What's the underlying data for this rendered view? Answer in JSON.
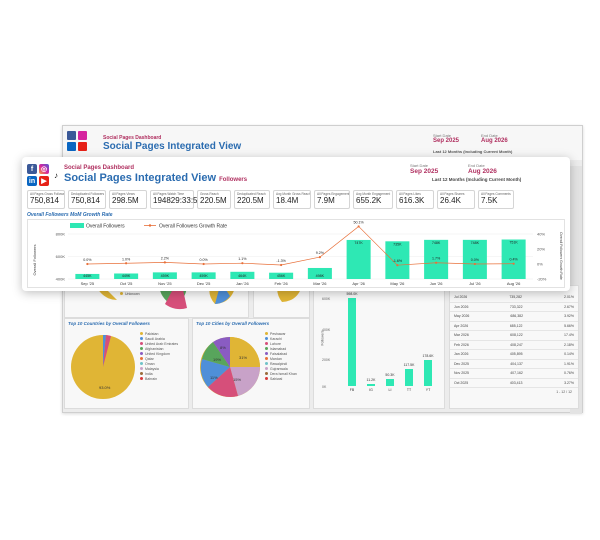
{
  "background": {
    "header": {
      "small_title": "Social Pages Dashboard",
      "big_title": "Social Pages Integrated View",
      "date_start_label": "Start Date",
      "date_start": "Sep 2025",
      "date_end_label": "End Date",
      "date_end": "Aug 2026",
      "range_text": "Last 12 Months (Including Current Month)"
    },
    "pie1_legend": [
      "Unknown"
    ],
    "countries_title": "Top 10 Countries by Overall Followers",
    "countries_legend": [
      "Pakistan",
      "Saudi Arabia",
      "United Arab Emirates",
      "Afghanistan",
      "United Kingdom",
      "Qatar",
      "Oman",
      "Malaysia",
      "India",
      "Bahrain"
    ],
    "countries_pie_label": "93.0%",
    "cities_title": "Top 10 Cities by Overall Followers",
    "cities_legend": [
      "Peshawar",
      "Karachi",
      "Lahore",
      "Islamabad",
      "Faisalabad",
      "Mardan",
      "Rawalpindi",
      "Gujranwala",
      "Dera Ismail Khan",
      "Sahiwal"
    ],
    "cities_pie_labels": [
      "31%",
      "19%",
      "11%",
      "15%",
      "8%"
    ],
    "platform_bars": {
      "ylabel": "Followers",
      "yticks": [
        "600K",
        "400K",
        "200K",
        "0K"
      ],
      "categories": [
        "FB",
        "IG",
        "LI",
        "TT",
        "YT"
      ],
      "values": [
        598.0,
        11.2,
        50.3,
        117.5,
        178.6
      ],
      "labels": [
        "598.0K",
        "11.2K",
        "50.3K",
        "117.5K",
        "178.6K"
      ]
    },
    "table_rows": [
      [
        "Jul 2026",
        "735,282",
        "2.01%"
      ],
      [
        "Jun 2026",
        "733,322",
        "2.67%"
      ],
      [
        "May 2026",
        "686,382",
        "3.92%"
      ],
      [
        "Apr 2026",
        "685,122",
        "5.66%"
      ],
      [
        "Mar 2026",
        "608,122",
        "17.4%"
      ],
      [
        "Feb 2026",
        "408,247",
        "2.18%"
      ],
      [
        "Jan 2026",
        "405,895",
        "0.14%"
      ],
      [
        "Dec 2025",
        "404,137",
        "1.91%"
      ],
      [
        "Nov 2025",
        "407,162",
        "0.76%"
      ],
      [
        "Oct 2025",
        "403,413",
        "3.27%"
      ]
    ],
    "pagination": "1 - 12 / 12",
    "side_label": "Overall Followers Growth"
  },
  "card": {
    "small_title": "Social Pages Dashboard",
    "big_title": "Social Pages Integrated View",
    "big_title_suffix": "Followers",
    "date_start_label": "Start Date",
    "date_start": "Sep 2025",
    "date_end_label": "End Date",
    "date_end": "Aug 2026",
    "range_text": "Last 12 Months (Including Current Month)",
    "kpis": [
      {
        "label": "All Pages Gross Followers",
        "value": "750,814"
      },
      {
        "label": "Deduplicated Followers",
        "value": "750,814"
      },
      {
        "label": "All Pages Views",
        "value": "298.5M"
      },
      {
        "label": "All Pages Watch Time",
        "value": "194829:33:50"
      },
      {
        "label": "Gross Reach",
        "value": "220.5M"
      },
      {
        "label": "Deduplicated Reach",
        "value": "220.5M"
      },
      {
        "label": "Avg Month Gross Reach",
        "value": "18.4M"
      },
      {
        "label": "All Pages Engagement",
        "value": "7.9M"
      },
      {
        "label": "Avg Month Engagement",
        "value": "655.2K"
      },
      {
        "label": "All Pages Likes",
        "value": "616.3K"
      },
      {
        "label": "All Pages Shares",
        "value": "26.4K"
      },
      {
        "label": "All Pages Comments",
        "value": "7.5K"
      }
    ],
    "chart_title": "Overall Followers MoM Growth Rate"
  },
  "chart_data": {
    "type": "bar",
    "title": "Overall Followers MoM Growth Rate",
    "ylabel": "Overall Followers",
    "y2label": "Overall Followers Growth Rate",
    "categories": [
      "Sep '25",
      "Oct '25",
      "Nov '25",
      "Dec '25",
      "Jan '26",
      "Feb '26",
      "Mar '26",
      "Apr '26",
      "May '26",
      "Jun '26",
      "Jul '26",
      "Aug '26"
    ],
    "ylim": [
      400,
      800
    ],
    "yticks": [
      "800K",
      "600K",
      "400K"
    ],
    "y2ticks": [
      "40%",
      "20%",
      "0%",
      "-20%"
    ],
    "series": [
      {
        "name": "Overall Followers",
        "values": [
          445,
          449,
          459,
          459,
          464,
          456,
          498,
          747,
          735,
          748,
          748,
          751
        ],
        "labels": [
          "445K",
          "449K",
          "459K",
          "459K",
          "464K",
          "456K",
          "498K",
          "747K",
          "735K",
          "748K",
          "748K",
          "751K"
        ],
        "color": "#2ee8b4"
      },
      {
        "name": "Overall Followers Growth Rate",
        "values": [
          0.0,
          1.0,
          2.2,
          0.0,
          1.1,
          -1.3,
          9.2,
          50.1,
          -1.6,
          1.7,
          0.0,
          0.4
        ],
        "labels": [
          "0.0%",
          "1.0%",
          "2.2%",
          "0.0%",
          "1.1%",
          "-1.3%",
          "9.2%",
          "50.1%",
          "-1.6%",
          "1.7%",
          "0.0%",
          "0.4%"
        ],
        "color": "#e8703a"
      }
    ]
  },
  "icons": [
    "facebook-icon",
    "instagram-icon",
    "linkedin-icon",
    "youtube-icon",
    "tiktok-icon"
  ],
  "colors": {
    "accent": "#2ee8b4",
    "title_blue": "#2b6cb0",
    "brand_red": "#b03060",
    "growth_line": "#e8703a"
  }
}
